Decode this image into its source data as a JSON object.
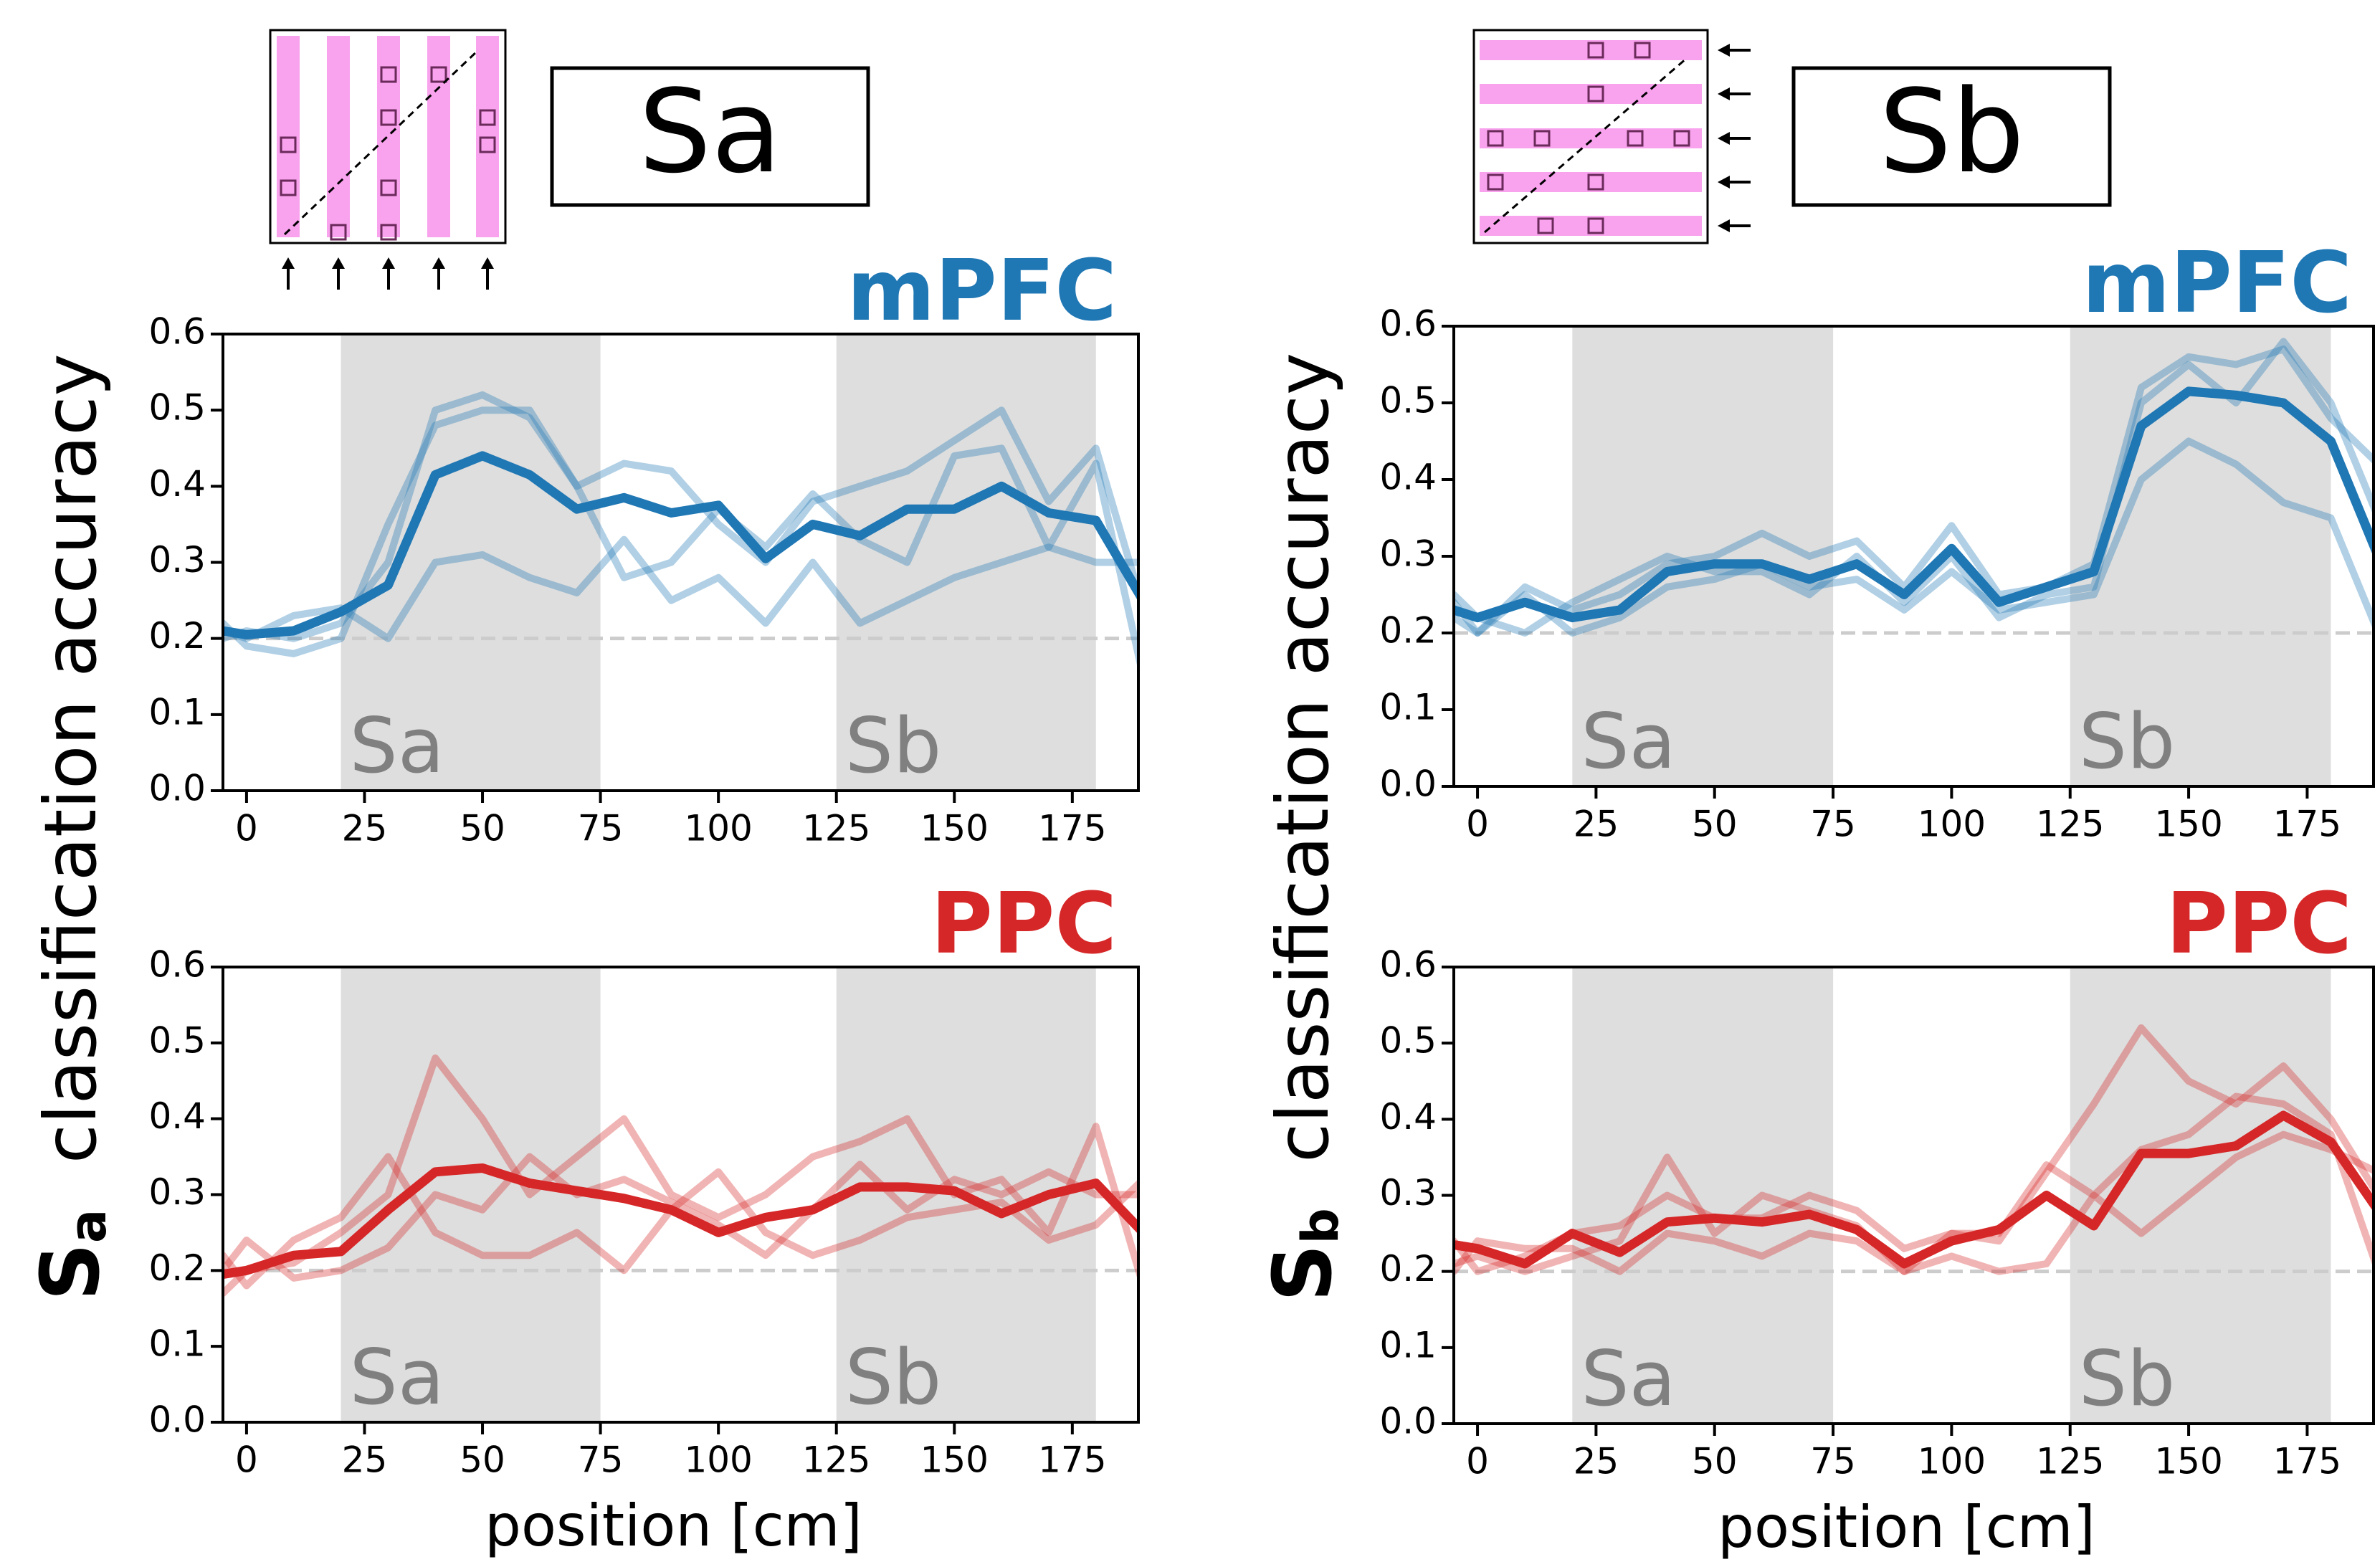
{
  "headers": [
    {
      "label": "Sa"
    },
    {
      "label": "Sb"
    }
  ],
  "ylabels": [
    {
      "symbol": "S",
      "subscript": "a",
      "text": "classification accuracy"
    },
    {
      "symbol": "S",
      "subscript": "b",
      "text": "classification accuracy"
    }
  ],
  "chart_data": [
    {
      "type": "line",
      "title": "mPFC",
      "title_color": "#1f77b4",
      "x": [
        -5,
        0,
        10,
        20,
        30,
        40,
        50,
        60,
        70,
        80,
        90,
        100,
        110,
        120,
        130,
        140,
        150,
        160,
        170,
        180,
        190
      ],
      "series": [
        {
          "color": "#1f77b4",
          "alpha": 0.35,
          "values": [
            0.2,
            0.21,
            0.2,
            0.22,
            0.3,
            0.5,
            0.52,
            0.49,
            0.4,
            0.43,
            0.42,
            0.35,
            0.3,
            0.38,
            0.4,
            0.42,
            0.46,
            0.5,
            0.38,
            0.45,
            0.24
          ]
        },
        {
          "color": "#1f77b4",
          "alpha": 0.35,
          "values": [
            0.22,
            0.19,
            0.18,
            0.2,
            0.35,
            0.48,
            0.5,
            0.5,
            0.4,
            0.28,
            0.3,
            0.37,
            0.32,
            0.39,
            0.33,
            0.3,
            0.44,
            0.45,
            0.32,
            0.43,
            0.15
          ]
        },
        {
          "color": "#1f77b4",
          "alpha": 0.35,
          "values": [
            0.21,
            0.2,
            0.23,
            0.24,
            0.2,
            0.3,
            0.31,
            0.28,
            0.26,
            0.33,
            0.25,
            0.28,
            0.22,
            0.3,
            0.22,
            0.25,
            0.28,
            0.3,
            0.32,
            0.3,
            0.3
          ]
        },
        {
          "color": "#1f77b4",
          "alpha": 1,
          "values": [
            0.21,
            0.205,
            0.21,
            0.235,
            0.27,
            0.415,
            0.44,
            0.415,
            0.37,
            0.385,
            0.365,
            0.375,
            0.305,
            0.35,
            0.335,
            0.37,
            0.37,
            0.4,
            0.365,
            0.355,
            0.25
          ]
        }
      ],
      "xlim": [
        -5,
        189
      ],
      "ylim": [
        0,
        0.6
      ],
      "xticks": [
        0,
        25,
        50,
        75,
        100,
        125,
        150,
        175
      ],
      "yticks": [
        {
          "value": 0,
          "label": "0.0"
        },
        0.1,
        0.2,
        0.3,
        0.4,
        0.5,
        0.6
      ],
      "regions": [
        {
          "start": 20,
          "end": 75,
          "label": "Sa"
        },
        {
          "start": 125,
          "end": 180,
          "label": "Sb"
        }
      ],
      "reference_line": 0.2
    },
    {
      "type": "line",
      "title": "PPC",
      "title_color": "#d62728",
      "xlabel": "position [cm]",
      "x": [
        -5,
        0,
        10,
        20,
        30,
        40,
        50,
        60,
        70,
        80,
        90,
        100,
        110,
        120,
        130,
        140,
        150,
        160,
        170,
        180,
        190
      ],
      "series": [
        {
          "color": "#d62728",
          "alpha": 0.35,
          "values": [
            0.17,
            0.2,
            0.21,
            0.25,
            0.3,
            0.48,
            0.4,
            0.3,
            0.35,
            0.4,
            0.3,
            0.27,
            0.3,
            0.35,
            0.37,
            0.4,
            0.3,
            0.32,
            0.25,
            0.39,
            0.18
          ]
        },
        {
          "color": "#d62728",
          "alpha": 0.35,
          "values": [
            0.2,
            0.24,
            0.19,
            0.2,
            0.23,
            0.3,
            0.28,
            0.35,
            0.3,
            0.32,
            0.29,
            0.26,
            0.22,
            0.28,
            0.34,
            0.28,
            0.32,
            0.3,
            0.33,
            0.3,
            0.3
          ]
        },
        {
          "color": "#d62728",
          "alpha": 0.35,
          "values": [
            0.22,
            0.18,
            0.24,
            0.27,
            0.35,
            0.25,
            0.22,
            0.22,
            0.25,
            0.2,
            0.28,
            0.33,
            0.25,
            0.22,
            0.24,
            0.27,
            0.28,
            0.29,
            0.24,
            0.26,
            0.32
          ]
        },
        {
          "color": "#d62728",
          "alpha": 1,
          "values": [
            0.195,
            0.2,
            0.22,
            0.225,
            0.28,
            0.33,
            0.335,
            0.315,
            0.305,
            0.295,
            0.28,
            0.25,
            0.27,
            0.28,
            0.31,
            0.31,
            0.305,
            0.275,
            0.3,
            0.315,
            0.25
          ]
        }
      ],
      "xlim": [
        -5,
        189
      ],
      "ylim": [
        0,
        0.6
      ],
      "xticks": [
        0,
        25,
        50,
        75,
        100,
        125,
        150,
        175
      ],
      "yticks": [
        {
          "value": 0,
          "label": "0.0"
        },
        0.1,
        0.2,
        0.3,
        0.4,
        0.5,
        0.6
      ],
      "regions": [
        {
          "start": 20,
          "end": 75,
          "label": "Sa"
        },
        {
          "start": 125,
          "end": 180,
          "label": "Sb"
        }
      ],
      "reference_line": 0.2
    },
    {
      "type": "line",
      "title": "mPFC",
      "title_color": "#1f77b4",
      "x": [
        -5,
        0,
        10,
        20,
        30,
        40,
        50,
        60,
        70,
        80,
        90,
        100,
        110,
        120,
        130,
        140,
        150,
        160,
        170,
        180,
        190
      ],
      "series": [
        {
          "color": "#1f77b4",
          "alpha": 0.35,
          "values": [
            0.24,
            0.2,
            0.26,
            0.23,
            0.25,
            0.29,
            0.3,
            0.33,
            0.3,
            0.32,
            0.26,
            0.34,
            0.25,
            0.26,
            0.29,
            0.52,
            0.56,
            0.55,
            0.57,
            0.48,
            0.42
          ]
        },
        {
          "color": "#1f77b4",
          "alpha": 0.35,
          "values": [
            0.25,
            0.22,
            0.2,
            0.24,
            0.27,
            0.3,
            0.28,
            0.28,
            0.25,
            0.3,
            0.24,
            0.3,
            0.22,
            0.25,
            0.26,
            0.5,
            0.55,
            0.5,
            0.58,
            0.5,
            0.35
          ]
        },
        {
          "color": "#1f77b4",
          "alpha": 0.35,
          "values": [
            0.22,
            0.2,
            0.25,
            0.2,
            0.22,
            0.26,
            0.27,
            0.29,
            0.26,
            0.27,
            0.23,
            0.28,
            0.23,
            0.24,
            0.25,
            0.4,
            0.45,
            0.42,
            0.37,
            0.35,
            0.2
          ]
        },
        {
          "color": "#1f77b4",
          "alpha": 1,
          "values": [
            0.23,
            0.22,
            0.24,
            0.22,
            0.23,
            0.28,
            0.29,
            0.29,
            0.27,
            0.29,
            0.25,
            0.31,
            0.24,
            0.26,
            0.28,
            0.47,
            0.515,
            0.51,
            0.5,
            0.45,
            0.3
          ]
        }
      ],
      "xlim": [
        -5,
        189
      ],
      "ylim": [
        0,
        0.6
      ],
      "xticks": [
        0,
        25,
        50,
        75,
        100,
        125,
        150,
        175
      ],
      "yticks": [
        {
          "value": 0,
          "label": "0.0"
        },
        0.1,
        0.2,
        0.3,
        0.4,
        0.5,
        0.6
      ],
      "regions": [
        {
          "start": 20,
          "end": 75,
          "label": "Sa"
        },
        {
          "start": 125,
          "end": 180,
          "label": "Sb"
        }
      ],
      "reference_line": 0.2
    },
    {
      "type": "line",
      "title": "PPC",
      "title_color": "#d62728",
      "xlabel": "position [cm]",
      "x": [
        -5,
        0,
        10,
        20,
        30,
        40,
        50,
        60,
        70,
        80,
        90,
        100,
        110,
        120,
        130,
        140,
        150,
        160,
        170,
        180,
        190
      ],
      "series": [
        {
          "color": "#d62728",
          "alpha": 0.35,
          "values": [
            0.24,
            0.2,
            0.22,
            0.25,
            0.26,
            0.3,
            0.27,
            0.27,
            0.3,
            0.28,
            0.23,
            0.25,
            0.24,
            0.33,
            0.42,
            0.52,
            0.45,
            0.42,
            0.47,
            0.4,
            0.3
          ]
        },
        {
          "color": "#d62728",
          "alpha": 0.35,
          "values": [
            0.21,
            0.22,
            0.2,
            0.22,
            0.24,
            0.35,
            0.25,
            0.3,
            0.28,
            0.26,
            0.2,
            0.25,
            0.25,
            0.34,
            0.3,
            0.36,
            0.38,
            0.43,
            0.42,
            0.38,
            0.2
          ]
        },
        {
          "color": "#d62728",
          "alpha": 0.35,
          "values": [
            0.2,
            0.24,
            0.23,
            0.23,
            0.2,
            0.25,
            0.24,
            0.22,
            0.25,
            0.24,
            0.2,
            0.22,
            0.2,
            0.21,
            0.3,
            0.25,
            0.3,
            0.35,
            0.38,
            0.36,
            0.33
          ]
        },
        {
          "color": "#d62728",
          "alpha": 1,
          "values": [
            0.235,
            0.23,
            0.21,
            0.25,
            0.225,
            0.265,
            0.27,
            0.265,
            0.275,
            0.255,
            0.21,
            0.24,
            0.255,
            0.3,
            0.26,
            0.355,
            0.355,
            0.365,
            0.405,
            0.37,
            0.28
          ]
        }
      ],
      "xlim": [
        -5,
        189
      ],
      "ylim": [
        0,
        0.6
      ],
      "xticks": [
        0,
        25,
        50,
        75,
        100,
        125,
        150,
        175
      ],
      "yticks": [
        {
          "value": 0,
          "label": "0.0"
        },
        0.1,
        0.2,
        0.3,
        0.4,
        0.5,
        0.6
      ],
      "regions": [
        {
          "start": 20,
          "end": 75,
          "label": "Sa"
        },
        {
          "start": 125,
          "end": 180,
          "label": "Sb"
        }
      ],
      "reference_line": 0.2
    }
  ]
}
